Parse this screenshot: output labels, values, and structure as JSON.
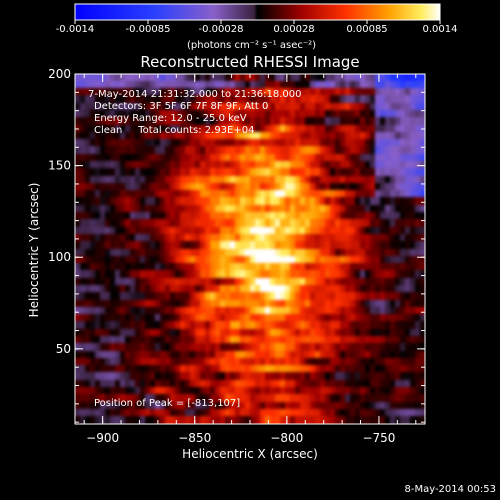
{
  "colorbar": {
    "ticks": [
      "-0.0014",
      "-0.00085",
      "-0.00028",
      "0.00028",
      "0.00085",
      "0.0014"
    ],
    "unit": "(photons cm⁻² s⁻¹ asec⁻²)"
  },
  "info": {
    "line1": "7-May-2014 21:31:32.000 to 21:36:18.000",
    "line2": "Detectors: 3F 5F 6F 7F 8F 9F, Att 0",
    "line3": "Energy Range: 12.0 - 25.0 keV",
    "line4": "Clean     Total counts: 2.93E+04",
    "peak": "Position of Peak = [-813,107]"
  },
  "footer": {
    "timestamp": "8-May-2014 00:53"
  },
  "chart_data": {
    "type": "heatmap",
    "title": "Reconstructed RHESSI Image",
    "xlabel": "Heliocentric X (arcsec)",
    "ylabel": "Heliocentric Y (arcsec)",
    "xlim": [
      -915,
      -725
    ],
    "ylim": [
      9,
      200
    ],
    "xticks": [
      -900,
      -850,
      -800,
      -750
    ],
    "yticks": [
      50,
      100,
      150,
      200
    ],
    "value_range": [
      -0.0014,
      0.0014
    ],
    "peak": [
      -813,
      107
    ]
  }
}
